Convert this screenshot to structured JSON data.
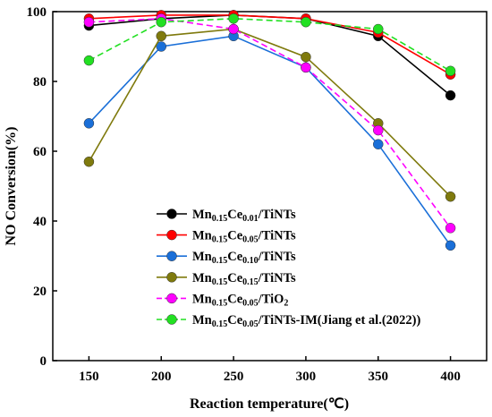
{
  "chart_data": {
    "type": "line",
    "xlabel": "Reaction temperature(℃)",
    "ylabel": "NO Conversion(%)",
    "x": [
      150,
      200,
      250,
      300,
      350,
      400
    ],
    "xlim": [
      125,
      425
    ],
    "ylim": [
      0,
      100
    ],
    "xticks": [
      "150",
      "200",
      "250",
      "300",
      "350",
      "400"
    ],
    "yticks": [
      "0",
      "20",
      "40",
      "60",
      "80",
      "100"
    ],
    "legend_position": "lower-left",
    "series": [
      {
        "name": "Mn0.15Ce0.01/TiNTs",
        "name_parts": [
          [
            "Mn",
            ""
          ],
          [
            "0.15",
            "sub"
          ],
          [
            "Ce",
            ""
          ],
          [
            "0.01",
            "sub"
          ],
          [
            "/TiNTs",
            ""
          ]
        ],
        "color": "#000000",
        "dashed": false,
        "values": [
          96,
          98,
          99,
          98,
          93,
          76
        ]
      },
      {
        "name": "Mn0.15Ce0.05/TiNTs",
        "name_parts": [
          [
            "Mn",
            ""
          ],
          [
            "0.15",
            "sub"
          ],
          [
            "Ce",
            ""
          ],
          [
            "0.05",
            "sub"
          ],
          [
            "/TiNTs",
            ""
          ]
        ],
        "color": "#ff0000",
        "dashed": false,
        "values": [
          98,
          99,
          99,
          98,
          94,
          82
        ]
      },
      {
        "name": "Mn0.15Ce0.10/TiNTs",
        "name_parts": [
          [
            "Mn",
            ""
          ],
          [
            "0.15",
            "sub"
          ],
          [
            "Ce",
            ""
          ],
          [
            "0.10",
            "sub"
          ],
          [
            "/TiNTs",
            ""
          ]
        ],
        "color": "#1a6fd8",
        "dashed": false,
        "values": [
          68,
          90,
          93,
          84,
          62,
          33
        ]
      },
      {
        "name": "Mn0.15Ce0.15/TiNTs",
        "name_parts": [
          [
            "Mn",
            ""
          ],
          [
            "0.15",
            "sub"
          ],
          [
            "Ce",
            ""
          ],
          [
            "0.15",
            "sub"
          ],
          [
            "/TiNTs",
            ""
          ]
        ],
        "color": "#7f7a0d",
        "dashed": false,
        "values": [
          57,
          93,
          95,
          87,
          68,
          47
        ]
      },
      {
        "name": "Mn0.15Ce0.05/TiO2",
        "name_parts": [
          [
            "Mn",
            ""
          ],
          [
            "0.15",
            "sub"
          ],
          [
            "Ce",
            ""
          ],
          [
            "0.05",
            "sub"
          ],
          [
            "/TiO",
            ""
          ],
          [
            "2",
            "sub"
          ]
        ],
        "color": "#ff00ff",
        "dashed": true,
        "values": [
          97,
          98,
          95,
          84,
          66,
          38
        ]
      },
      {
        "name": "Mn0.15Ce0.05/TiNTs-IM(Jiang et al.(2022))",
        "name_parts": [
          [
            "Mn",
            ""
          ],
          [
            "0.15",
            "sub"
          ],
          [
            "Ce",
            ""
          ],
          [
            "0.05",
            "sub"
          ],
          [
            "/TiNTs-IM(Jiang et al.(2022))",
            ""
          ]
        ],
        "color": "#22e022",
        "dashed": true,
        "values": [
          86,
          97,
          98,
          97,
          95,
          83
        ]
      }
    ]
  }
}
